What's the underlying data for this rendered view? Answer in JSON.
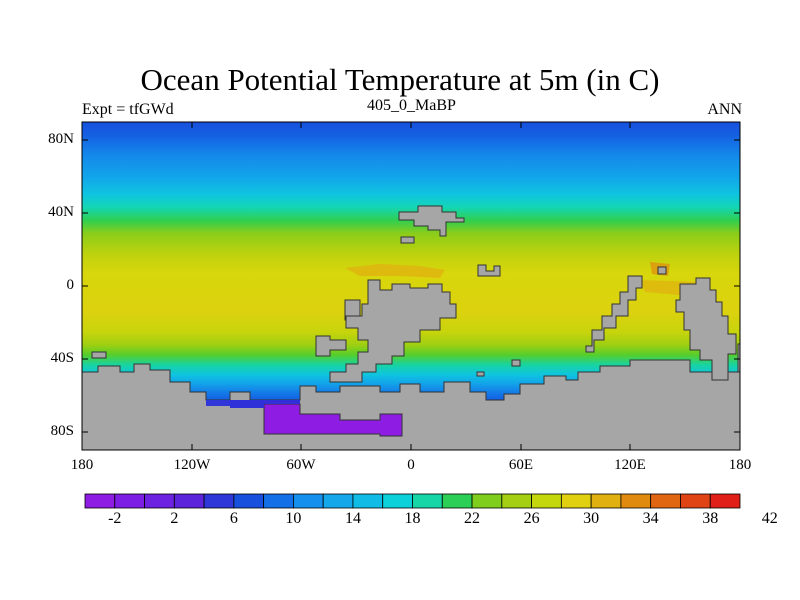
{
  "title": "Ocean Potential Temperature at 5m (in C)",
  "left_label": "Expt = tfGWd",
  "center_label": "405_0_MaBP",
  "right_label": "ANN",
  "lat_ticks": [
    "80N",
    "40N",
    "0",
    "40S",
    "80S"
  ],
  "lon_ticks": [
    "180",
    "120W",
    "60W",
    "0",
    "60E",
    "120E",
    "180"
  ],
  "colorbar": {
    "labels": [
      "-2",
      "2",
      "6",
      "10",
      "14",
      "18",
      "22",
      "26",
      "30",
      "34",
      "38",
      "42"
    ],
    "colors": [
      "#8e1ce3",
      "#7c1ee3",
      "#6c22e0",
      "#5c25dc",
      "#2f37d8",
      "#1650dc",
      "#1470e6",
      "#1590ec",
      "#14a8ea",
      "#10bce6",
      "#0cd0da",
      "#16d6a8",
      "#2ccf55",
      "#7fcd1c",
      "#a4cf12",
      "#c4d70c",
      "#e0d010",
      "#e0b010",
      "#e08a10",
      "#e06612",
      "#e04414",
      "#e02018"
    ]
  },
  "colors": {
    "land": "#a6a6a6",
    "coast": "#333333"
  }
}
